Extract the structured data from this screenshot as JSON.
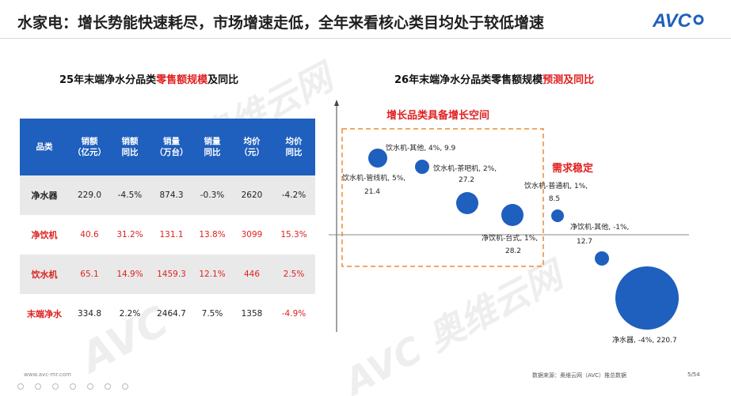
{
  "title": "水家电：增长势能快速耗尽，市场增速走低，全年来看核心类目均处于较低增速",
  "logo": "AVC",
  "left_heading": {
    "prefix": "25年末端净水分品类",
    "highlight": "零售额规模",
    "suffix": "及同比"
  },
  "right_heading": {
    "prefix": "26年末端净水分品类零售额规模",
    "highlight": "预测及同比"
  },
  "table": {
    "headers": [
      "品类",
      "销额\n（亿元）",
      "销额\n同比",
      "销量\n（万台）",
      "销量\n同比",
      "均价\n（元）",
      "均价\n同比"
    ],
    "rows": [
      {
        "cells": [
          "净水器",
          "229.0",
          "-4.5%",
          "874.3",
          "-0.3%",
          "2620",
          "-4.2%"
        ],
        "tone": "dark"
      },
      {
        "cells": [
          "净饮机",
          "40.6",
          "31.2%",
          "131.1",
          "13.8%",
          "3099",
          "15.3%"
        ],
        "tone": "red"
      },
      {
        "cells": [
          "饮水机",
          "65.1",
          "14.9%",
          "1459.3",
          "12.1%",
          "446",
          "2.5%"
        ],
        "tone": "red"
      },
      {
        "cells": [
          "末端净水",
          "334.8",
          "2.2%",
          "2464.7",
          "7.5%",
          "1358",
          "-4.9%"
        ],
        "tone": "mixed"
      }
    ]
  },
  "annotations": {
    "growth": "增长品类具备增长空间",
    "stable": "需求稳定"
  },
  "chart_data": {
    "type": "scatter",
    "series": [
      {
        "label_top": "饮水机-其他, 4%, 9.9",
        "label_bottom": "",
        "x": 4,
        "y": 9.9,
        "r": 12
      },
      {
        "label_top": "饮水机-茶吧机, 2%,",
        "label_bottom": "27.2",
        "x": 2,
        "y": 27.2,
        "r": 9
      },
      {
        "label_top": "饮水机-管线机, 5%,",
        "label_bottom": "21.4",
        "x": 5,
        "y": 21.4,
        "r": 0
      },
      {
        "label_top": "",
        "label_bottom": "",
        "x": 5,
        "y": 21.4,
        "r": 14
      },
      {
        "label_top": "净饮机-台式, 1%,",
        "label_bottom": "28.2",
        "x": 1,
        "y": 28.2,
        "r": 14
      },
      {
        "label_top": "饮水机-普通机, 1%,",
        "label_bottom": "8.5",
        "x": 1,
        "y": 8.5,
        "r": 8
      },
      {
        "label_top": "净饮机-其他, -1%,",
        "label_bottom": "12.7",
        "x": -1,
        "y": 12.7,
        "r": 9
      },
      {
        "label_top": "净水器, -4%, 220.7",
        "label_bottom": "",
        "x": -4,
        "y": 220.7,
        "r": 40
      }
    ],
    "color": "#1f5fbd"
  },
  "footer": {
    "url": "www.avc-mr.com",
    "source": "数据来源：奥维云网（AVC）推总数据",
    "page": "5/54"
  }
}
